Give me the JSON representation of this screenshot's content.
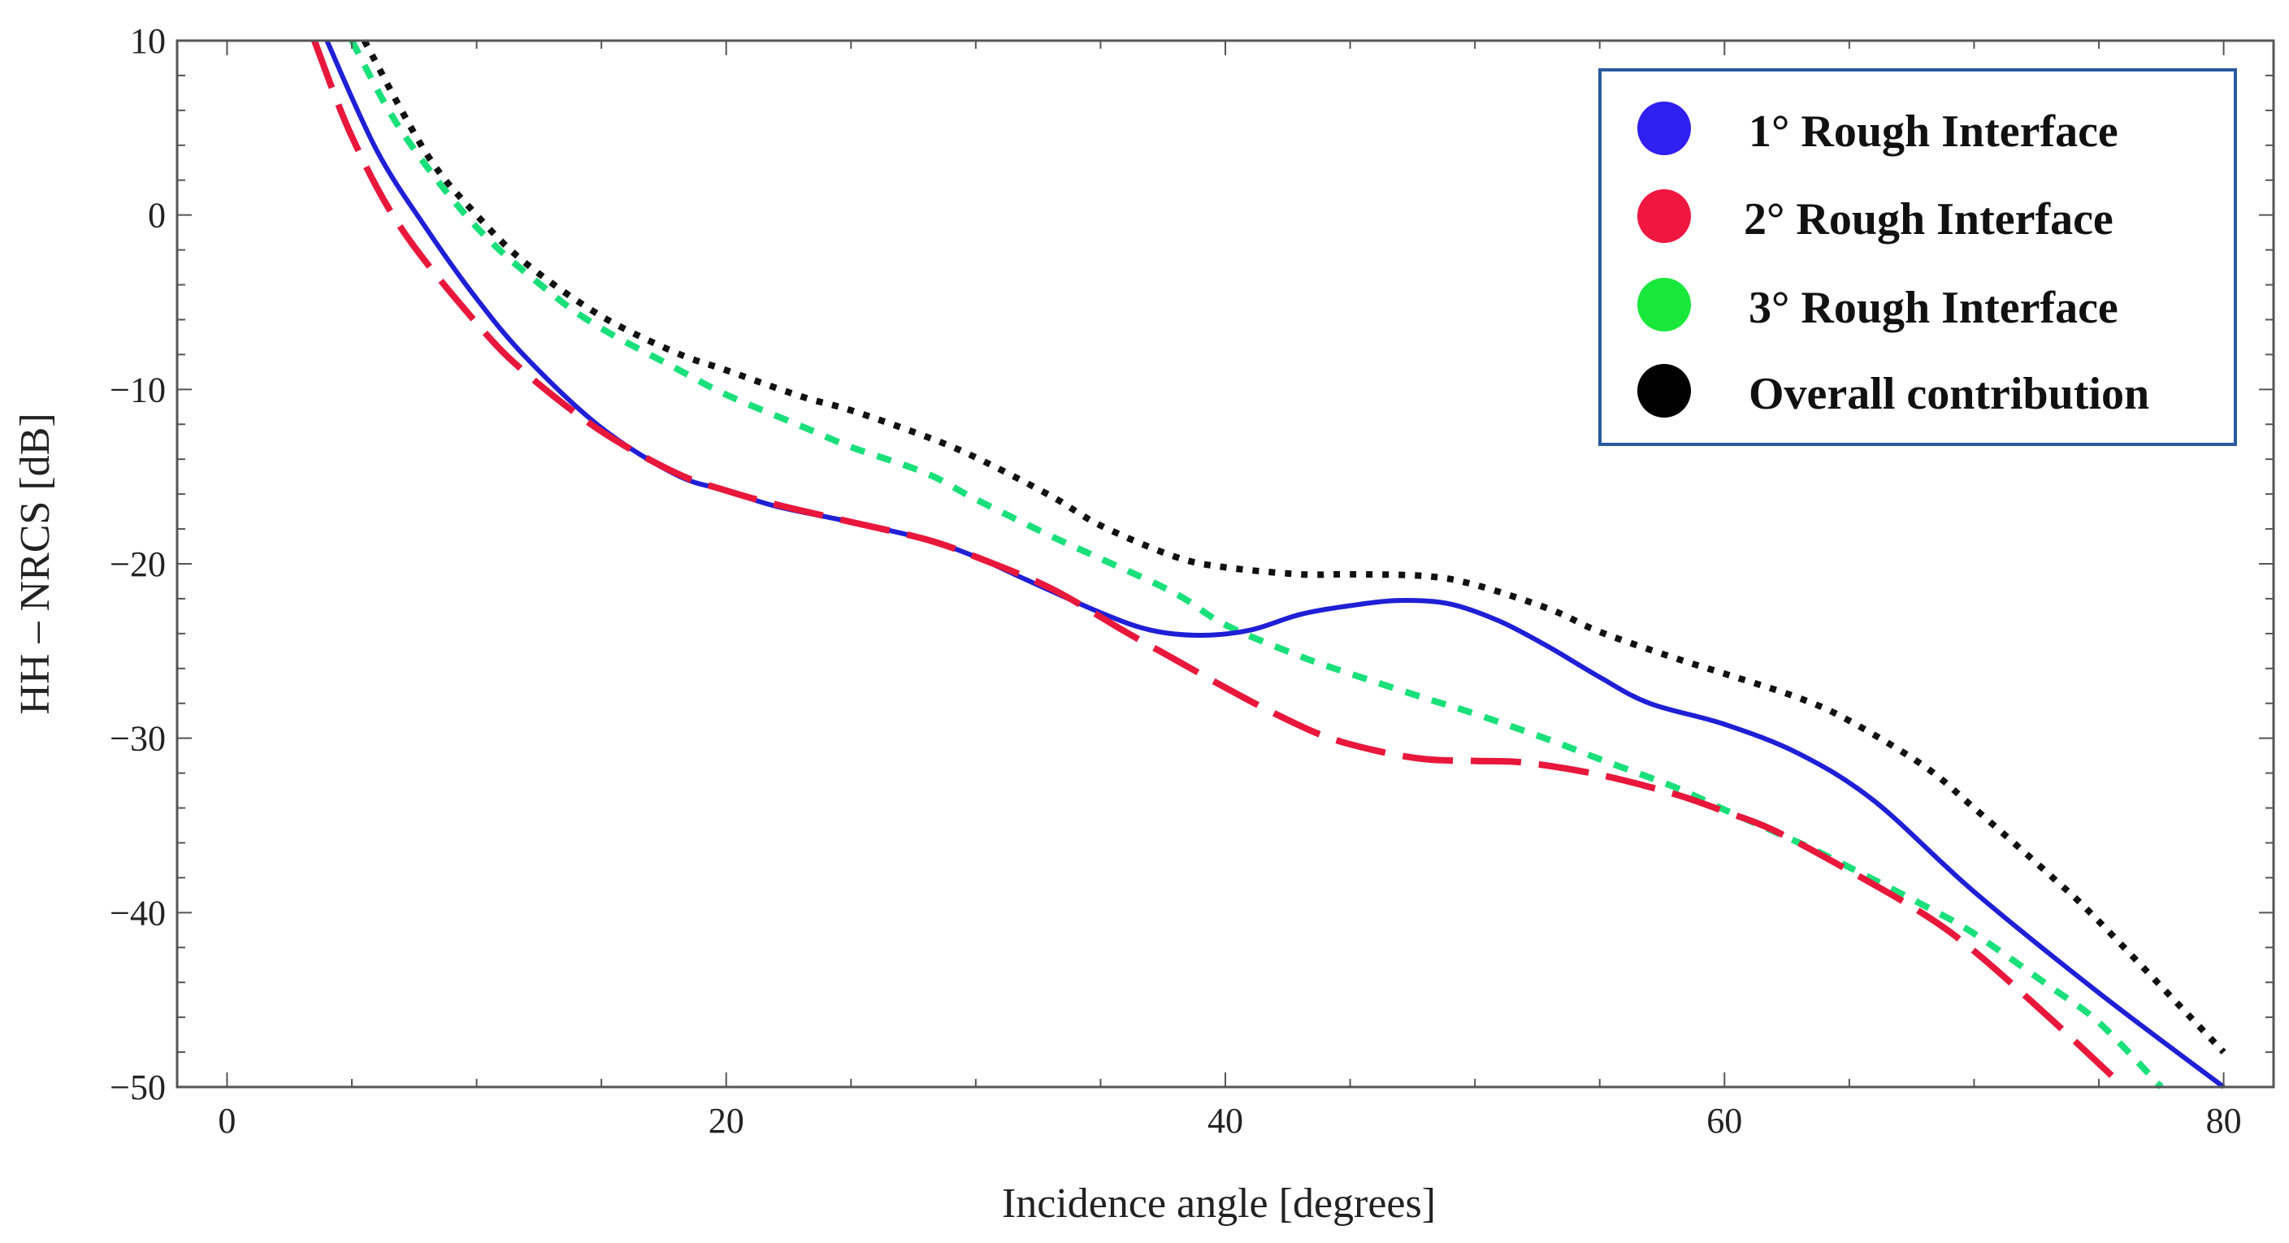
{
  "chart_data": {
    "type": "line",
    "title": "",
    "xlabel": "Incidence angle [degrees]",
    "ylabel": "HH – NRCS [dB]",
    "xlim": [
      -2,
      82
    ],
    "ylim": [
      -50,
      10
    ],
    "xticks": [
      0,
      20,
      40,
      60,
      80
    ],
    "yticks": [
      10,
      0,
      -10,
      -20,
      -30,
      -40,
      -50
    ],
    "xtick_labels": [
      "0",
      "20",
      "40",
      "60",
      "80"
    ],
    "ytick_labels": [
      "10",
      "0",
      "−10",
      "−20",
      "−30",
      "−40",
      "−50"
    ],
    "legend_position": "top-right",
    "series": [
      {
        "name": "1° Rough Interface",
        "color": "#1f1fd6",
        "style": "solid",
        "x": [
          4,
          6,
          8,
          10,
          12,
          15,
          18,
          20,
          22,
          25,
          28,
          30,
          32,
          35,
          37,
          39,
          41,
          43,
          45,
          47,
          49,
          51,
          53,
          55,
          57,
          60,
          63,
          66,
          70,
          75,
          80
        ],
        "y": [
          10,
          3.7,
          -0.8,
          -4.8,
          -8.2,
          -12.2,
          -14.9,
          -15.8,
          -16.7,
          -17.6,
          -18.6,
          -19.6,
          -20.9,
          -22.8,
          -23.8,
          -24.1,
          -23.8,
          -22.9,
          -22.4,
          -22.1,
          -22.3,
          -23.3,
          -24.8,
          -26.5,
          -28,
          -29.2,
          -30.9,
          -33.6,
          -38.8,
          -44.6,
          -50
        ]
      },
      {
        "name": "2° Rough Interface",
        "color": "#e8173b",
        "style": "long-dash",
        "x": [
          3.5,
          5,
          7,
          10,
          12,
          15,
          18,
          20,
          22,
          25,
          28,
          30,
          33,
          36,
          38,
          40,
          42,
          44,
          46,
          48,
          50,
          52,
          55,
          58,
          60,
          62,
          65,
          68,
          70,
          73,
          76
        ],
        "y": [
          10,
          4.5,
          -0.8,
          -6.2,
          -9.1,
          -12.4,
          -14.8,
          -15.8,
          -16.6,
          -17.6,
          -18.6,
          -19.6,
          -21.4,
          -23.9,
          -25.5,
          -27.1,
          -28.6,
          -29.9,
          -30.7,
          -31.2,
          -31.3,
          -31.4,
          -32.1,
          -33.2,
          -34.2,
          -35.3,
          -37.6,
          -40.1,
          -42.2,
          -46,
          -50
        ]
      },
      {
        "name": "3° Rough Interface",
        "color": "#19e07a",
        "style": "short-dash",
        "x": [
          5,
          7,
          10,
          13,
          15,
          18,
          20,
          23,
          25,
          28,
          30,
          33,
          35,
          38,
          40,
          43,
          45,
          48,
          50,
          53,
          55,
          58,
          60,
          63,
          65,
          68,
          70,
          73,
          75,
          77.5
        ],
        "y": [
          10,
          4.8,
          -0.7,
          -4.5,
          -6.5,
          -8.8,
          -10.3,
          -12.1,
          -13.3,
          -14.8,
          -16.3,
          -18.4,
          -19.7,
          -21.7,
          -23.5,
          -25.3,
          -26.3,
          -27.7,
          -28.6,
          -30.1,
          -31.2,
          -32.8,
          -34.1,
          -36,
          -37.4,
          -39.6,
          -41.2,
          -44.2,
          -46.3,
          -50
        ]
      },
      {
        "name": "Overall contribution",
        "color": "#111111",
        "style": "dotted",
        "x": [
          5.5,
          8,
          10,
          12,
          15,
          18,
          20,
          23,
          25,
          28,
          30,
          33,
          35,
          38,
          40,
          43,
          45,
          48,
          50,
          53,
          55,
          58,
          60,
          63,
          65,
          68,
          70,
          73,
          75,
          80
        ],
        "y": [
          10,
          3.5,
          0,
          -2.8,
          -5.8,
          -7.9,
          -8.9,
          -10.4,
          -11.2,
          -12.7,
          -13.9,
          -16.1,
          -17.8,
          -19.6,
          -20.2,
          -20.6,
          -20.6,
          -20.7,
          -21.2,
          -22.6,
          -23.9,
          -25.4,
          -26.3,
          -27.7,
          -29,
          -31.6,
          -34,
          -37.8,
          -40.5,
          -48
        ]
      }
    ]
  }
}
